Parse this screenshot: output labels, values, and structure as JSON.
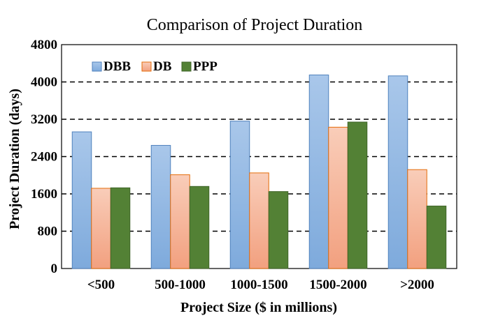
{
  "chart_data": {
    "type": "bar",
    "title": "Comparison of Project Duration",
    "xlabel": "Project Size ($ in millions)",
    "ylabel": "Project Duration (days)",
    "categories": [
      "<500",
      "500-1000",
      "1000-1500",
      "1500-2000",
      ">2000"
    ],
    "ylim": [
      0,
      4800
    ],
    "yticks": [
      "0",
      "800",
      "1600",
      "2400",
      "3200",
      "4000",
      "4800"
    ],
    "grid": "horizontal dashed",
    "legend_position": "top-left",
    "series": [
      {
        "name": "DBB",
        "values": [
          2930,
          2640,
          3160,
          4150,
          4130
        ],
        "color_top": "#A9C7EA",
        "color_bottom": "#7EAADC",
        "stroke": "#4F81BD"
      },
      {
        "name": "DB",
        "values": [
          1720,
          2010,
          2050,
          3030,
          2120
        ],
        "color_top": "#F9CDB9",
        "color_bottom": "#F2A07F",
        "stroke": "#E46C0A"
      },
      {
        "name": "PPP",
        "values": [
          1730,
          1760,
          1650,
          3140,
          1340
        ],
        "color_top": "#538135",
        "color_bottom": "#538135",
        "stroke": "#3F6428"
      }
    ]
  }
}
